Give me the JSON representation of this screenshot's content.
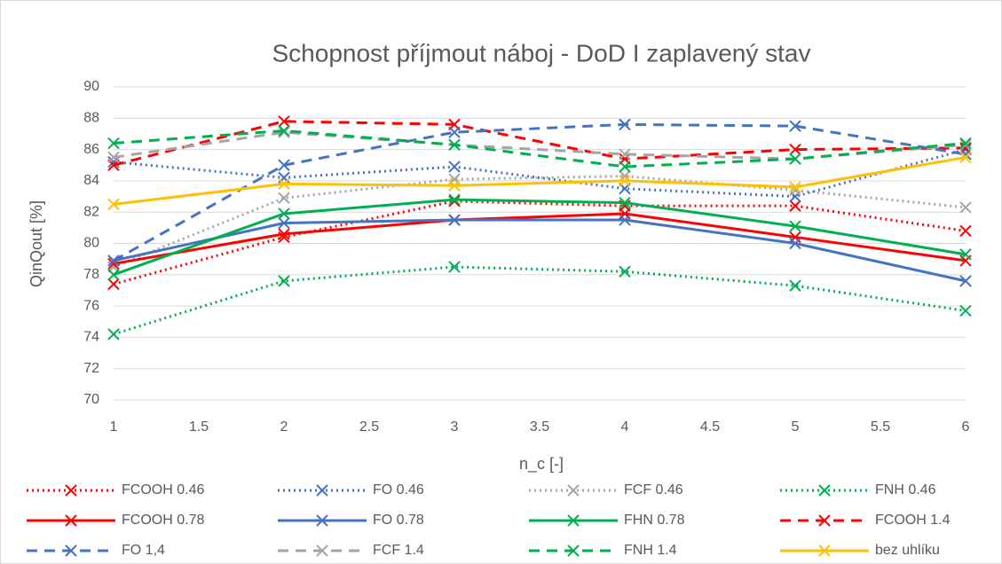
{
  "chart_data": {
    "type": "line",
    "title": "Schopnost příjmout náboj - DoD I zaplavený stav",
    "x_label": "n_c [-]",
    "y_label": "QinQout [%]",
    "x": [
      1,
      2,
      3,
      4,
      5,
      6
    ],
    "xlim": [
      1,
      6
    ],
    "xticks": [
      1,
      1.5,
      2,
      2.5,
      3,
      3.5,
      4,
      4.5,
      5,
      5.5,
      6
    ],
    "ylim": [
      70,
      90
    ],
    "yticks": [
      70,
      72,
      74,
      76,
      78,
      80,
      82,
      84,
      86,
      88,
      90
    ],
    "grid": true,
    "legend": "bottom",
    "series": [
      {
        "name": "FCOOH 0.46",
        "color": "#ff0000",
        "dash": "dotted",
        "values": [
          77.4,
          80.4,
          82.7,
          82.4,
          82.4,
          80.8
        ]
      },
      {
        "name": "FO 0.46",
        "color": "#4472c4",
        "dash": "dotted",
        "values": [
          85.2,
          84.2,
          84.9,
          83.5,
          83.0,
          86.0
        ]
      },
      {
        "name": "FCF 0.46",
        "color": "#a5a5a5",
        "dash": "dotted",
        "values": [
          78.5,
          82.9,
          84.1,
          84.3,
          83.4,
          82.3
        ]
      },
      {
        "name": "FNH 0.46",
        "color": "#00b050",
        "dash": "dotted",
        "values": [
          74.2,
          77.6,
          78.5,
          78.2,
          77.3,
          75.7
        ]
      },
      {
        "name": "FCOOH 0.78",
        "color": "#ff0000",
        "dash": "solid",
        "values": [
          78.7,
          80.6,
          81.5,
          81.9,
          80.4,
          78.9
        ]
      },
      {
        "name": "FO 0.78",
        "color": "#4472c4",
        "dash": "solid",
        "values": [
          78.9,
          81.3,
          81.5,
          81.5,
          80.0,
          77.6
        ]
      },
      {
        "name": "FHN 0.78",
        "color": "#00b050",
        "dash": "solid",
        "values": [
          78.0,
          81.9,
          82.8,
          82.6,
          81.1,
          79.3
        ]
      },
      {
        "name": "FCOOH 1.4",
        "color": "#ff0000",
        "dash": "dashed",
        "values": [
          85.0,
          87.8,
          87.6,
          85.4,
          86.0,
          86.1
        ]
      },
      {
        "name": "FO 1,4",
        "color": "#4472c4",
        "dash": "dashed",
        "values": [
          78.9,
          85.0,
          87.1,
          87.6,
          87.5,
          85.7
        ]
      },
      {
        "name": "FCF 1.4",
        "color": "#a5a5a5",
        "dash": "dashed",
        "values": [
          85.5,
          87.1,
          86.3,
          85.7,
          85.4,
          86.3
        ]
      },
      {
        "name": "FNH 1.4",
        "color": "#00b050",
        "dash": "dashed",
        "values": [
          86.4,
          87.2,
          86.3,
          84.9,
          85.4,
          86.4
        ]
      },
      {
        "name": "bez uhlíku",
        "color": "#ffc000",
        "dash": "solid",
        "values": [
          82.5,
          83.8,
          83.7,
          84.0,
          83.6,
          85.5
        ]
      }
    ]
  }
}
